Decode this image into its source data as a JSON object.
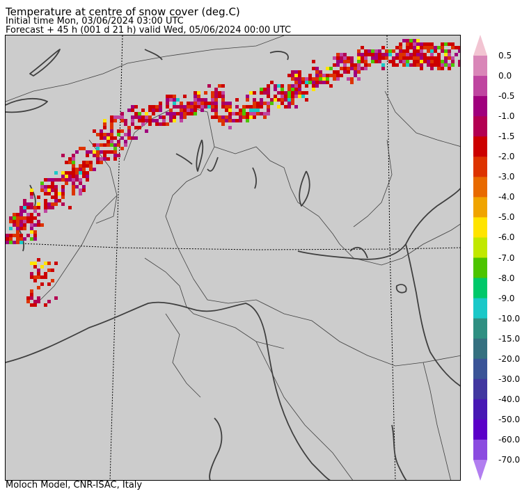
{
  "header": {
    "title": "Temperature at centre of snow cover (deg.C)",
    "initial_time": "Initial time  Mon, 03/06/2024  03:00 UTC",
    "forecast": "Forecast  +  45 h  (001 d 21 h)  valid Wed, 05/06/2024 00:00 UTC"
  },
  "footer": "Moloch Model, CNR-ISAC, Italy",
  "map": {
    "background_color": "#cccccc",
    "coast_color": "#3f3f3f",
    "border_color": "#3f3f3f"
  },
  "colorbar": {
    "labels": [
      "0.5",
      "0.0",
      "-0.5",
      "-1.0",
      "-1.5",
      "-2.0",
      "-3.0",
      "-4.0",
      "-5.0",
      "-6.0",
      "-7.0",
      "-8.0",
      "-9.0",
      "-10.0",
      "-15.0",
      "-20.0",
      "-30.0",
      "-40.0",
      "-50.0",
      "-60.0",
      "-70.0"
    ],
    "colors": [
      "#f2c4d2",
      "#d986b8",
      "#bf45a0",
      "#a0007d",
      "#b30052",
      "#cc0000",
      "#dd3300",
      "#e86a00",
      "#f0a400",
      "#ffe400",
      "#c1e800",
      "#4dc400",
      "#00c86a",
      "#1ac8c8",
      "#2f8f82",
      "#357080",
      "#3a5497",
      "#4137a0",
      "#4718b4",
      "#5b00c8",
      "#8b4be0",
      "#b27ef0"
    ]
  }
}
